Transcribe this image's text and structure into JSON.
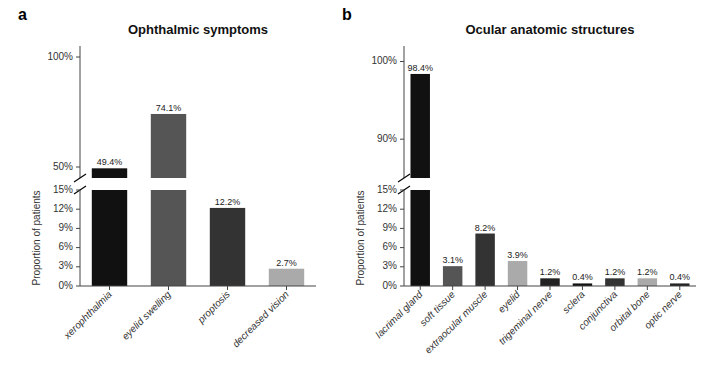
{
  "chart_data": [
    {
      "type": "bar",
      "panel_label": "a",
      "title": "Ophthalmic symptoms",
      "categories": [
        "xerophthalmia",
        "eyelid swelling",
        "proptosis",
        "decreased vision"
      ],
      "values": [
        49.4,
        74.1,
        12.2,
        2.7
      ],
      "value_labels": [
        "49.4%",
        "74.1%",
        "12.2%",
        "2.7%"
      ],
      "colors": [
        "#111111",
        "#555555",
        "#333333",
        "#aaaaaa"
      ],
      "data_labels": true,
      "ylabel": "Proportion of patients",
      "ylim": [
        0,
        105
      ],
      "ybreak": [
        15,
        45
      ],
      "yticks": [
        {
          "value": 0,
          "label": "0%"
        },
        {
          "value": 3,
          "label": "3%"
        },
        {
          "value": 6,
          "label": "6%"
        },
        {
          "value": 9,
          "label": "9%"
        },
        {
          "value": 12,
          "label": "12%"
        },
        {
          "value": 15,
          "label": "15%"
        },
        {
          "value": 50,
          "label": "50%"
        },
        {
          "value": 100,
          "label": "100%"
        }
      ]
    },
    {
      "type": "bar",
      "panel_label": "b",
      "title": "Ocular anatomic structures",
      "categories": [
        "lacrimal gland",
        "soft tissue",
        "extraocular muscle",
        "eyelid",
        "trigeminal nerve",
        "sclera",
        "conjunctiva",
        "orbital bone",
        "optic nerve"
      ],
      "values": [
        98.4,
        3.1,
        8.2,
        3.9,
        1.2,
        0.4,
        1.2,
        1.2,
        0.4
      ],
      "value_labels": [
        "98.4%",
        "3.1%",
        "8.2%",
        "3.9%",
        "1.2%",
        "0.4%",
        "1.2%",
        "1.2%",
        "0.4%"
      ],
      "colors": [
        "#111111",
        "#555555",
        "#333333",
        "#aaaaaa",
        "#222222",
        "#111111",
        "#333333",
        "#aaaaaa",
        "#222222"
      ],
      "data_labels": true,
      "ylabel": "Proportion of patients",
      "ylim": [
        0,
        102
      ],
      "ybreak": [
        15,
        85
      ],
      "yticks": [
        {
          "value": 0,
          "label": "0%"
        },
        {
          "value": 3,
          "label": "3%"
        },
        {
          "value": 6,
          "label": "6%"
        },
        {
          "value": 9,
          "label": "9%"
        },
        {
          "value": 12,
          "label": "12%"
        },
        {
          "value": 15,
          "label": "15%"
        },
        {
          "value": 90,
          "label": "90%"
        },
        {
          "value": 100,
          "label": "100%"
        }
      ]
    }
  ]
}
